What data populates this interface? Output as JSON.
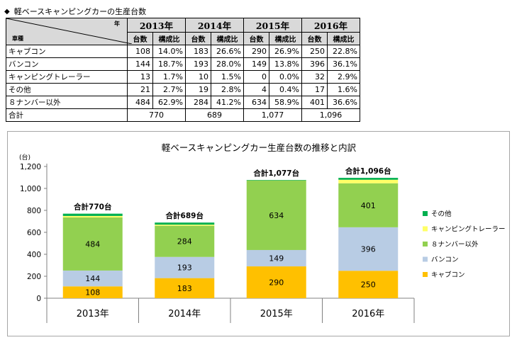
{
  "heading": {
    "marker": "◆",
    "title": "軽ベースキャンピングカーの生産台数"
  },
  "table": {
    "corner_top": "年",
    "corner_bottom": "車種",
    "years": [
      "2013年",
      "2014年",
      "2015年",
      "2016年"
    ],
    "sub_headers": [
      "台数",
      "構成比"
    ],
    "rows": [
      {
        "name": "キャブコン",
        "cells": [
          [
            "108",
            "14.0%"
          ],
          [
            "183",
            "26.6%"
          ],
          [
            "290",
            "26.9%"
          ],
          [
            "250",
            "22.8%"
          ]
        ]
      },
      {
        "name": "バンコン",
        "cells": [
          [
            "144",
            "18.7%"
          ],
          [
            "193",
            "28.0%"
          ],
          [
            "149",
            "13.8%"
          ],
          [
            "396",
            "36.1%"
          ]
        ]
      },
      {
        "name": "キャンピングトレーラー",
        "cells": [
          [
            "13",
            "1.7%"
          ],
          [
            "10",
            "1.5%"
          ],
          [
            "0",
            "0.0%"
          ],
          [
            "32",
            "2.9%"
          ]
        ]
      },
      {
        "name": "その他",
        "cells": [
          [
            "21",
            "2.7%"
          ],
          [
            "19",
            "2.8%"
          ],
          [
            "4",
            "0.4%"
          ],
          [
            "17",
            "1.6%"
          ]
        ]
      },
      {
        "name": "８ナンバー以外",
        "cells": [
          [
            "484",
            "62.9%"
          ],
          [
            "284",
            "41.2%"
          ],
          [
            "634",
            "58.9%"
          ],
          [
            "401",
            "36.6%"
          ]
        ]
      }
    ],
    "total_label": "合計",
    "totals": [
      "770",
      "689",
      "1,077",
      "1,096"
    ]
  },
  "chart_data": {
    "type": "bar",
    "stacked": true,
    "title": "軽ベースキャンピングカー生産台数の推移と内訳",
    "ylabel": "(台)",
    "ylim": [
      0,
      1200
    ],
    "yticks": [
      0,
      200,
      400,
      600,
      800,
      1000,
      1200
    ],
    "ytick_labels": [
      "0",
      "200",
      "400",
      "600",
      "800",
      "1,000",
      "1,200"
    ],
    "categories": [
      "2013年",
      "2014年",
      "2015年",
      "2016年"
    ],
    "series": [
      {
        "name": "キャブコン",
        "values": [
          108,
          183,
          290,
          250
        ],
        "color": "#ffc000"
      },
      {
        "name": "バンコン",
        "values": [
          144,
          193,
          149,
          396
        ],
        "color": "#b8cce4"
      },
      {
        "name": "８ナンバー以外",
        "values": [
          484,
          284,
          634,
          401
        ],
        "color": "#92d050"
      },
      {
        "name": "キャンピングトレーラー",
        "values": [
          13,
          10,
          0,
          32
        ],
        "color": "#ffff66"
      },
      {
        "name": "その他",
        "values": [
          21,
          19,
          4,
          17
        ],
        "color": "#00b050"
      }
    ],
    "value_labels": [
      [
        "108",
        "144",
        "484"
      ],
      [
        "183",
        "193",
        "284"
      ],
      [
        "290",
        "149",
        "634"
      ],
      [
        "250",
        "396",
        "401"
      ]
    ],
    "total_labels": [
      "合計770台",
      "合計689台",
      "合計1,077台",
      "合計1,096台"
    ],
    "totals": [
      770,
      689,
      1077,
      1096
    ],
    "legend_order": [
      "その他",
      "キャンピングトレーラー",
      "８ナンバー以外",
      "バンコン",
      "キャブコン"
    ],
    "legend_position": "right",
    "grid": false
  }
}
